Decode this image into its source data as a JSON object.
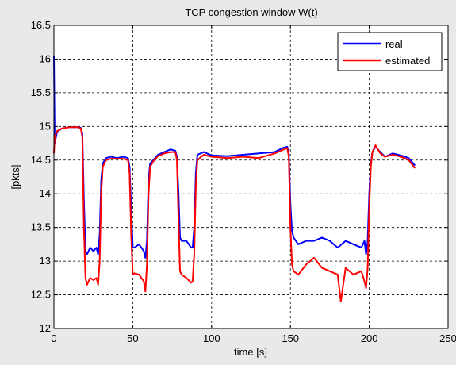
{
  "chart_data": {
    "type": "line",
    "title": "TCP congestion window W(t)",
    "xlabel": "time [s]",
    "ylabel": "[pkts]",
    "xlim": [
      0,
      250
    ],
    "ylim": [
      12,
      16.5
    ],
    "xticks": [
      "0",
      "50",
      "100",
      "150",
      "200",
      "250"
    ],
    "yticks": [
      "12",
      "12.5",
      "13",
      "13.5",
      "14",
      "14.5",
      "15",
      "15.5",
      "16",
      "16.5"
    ],
    "grid": true,
    "legend_position": "top-right",
    "series": [
      {
        "name": "real",
        "color": "#0000ff",
        "x": [
          0,
          0.5,
          2,
          5,
          10,
          15,
          17,
          18,
          19,
          20,
          21,
          23,
          25,
          27,
          28,
          29,
          30,
          31,
          33,
          36,
          40,
          44,
          47,
          48,
          49,
          50,
          51,
          54,
          57,
          58,
          59,
          60,
          61,
          63,
          66,
          70,
          74,
          77,
          78,
          79,
          80,
          81,
          84,
          87,
          88,
          89,
          90,
          91,
          95,
          100,
          110,
          120,
          130,
          140,
          145,
          148,
          149,
          150,
          151,
          152,
          155,
          160,
          165,
          170,
          175,
          180,
          185,
          190,
          195,
          197,
          198,
          199,
          200,
          201,
          202,
          204,
          207,
          210,
          215,
          220,
          225,
          229
        ],
        "y": [
          16.05,
          14.75,
          14.92,
          14.97,
          14.99,
          14.99,
          14.98,
          14.9,
          13.9,
          13.15,
          13.1,
          13.2,
          13.15,
          13.2,
          13.1,
          13.4,
          14.2,
          14.45,
          14.53,
          14.55,
          14.53,
          14.55,
          14.53,
          14.4,
          13.8,
          13.2,
          13.2,
          13.25,
          13.15,
          13.05,
          13.3,
          14.2,
          14.45,
          14.5,
          14.58,
          14.62,
          14.66,
          14.64,
          14.55,
          14.0,
          13.35,
          13.3,
          13.3,
          13.2,
          13.2,
          13.5,
          14.3,
          14.58,
          14.62,
          14.57,
          14.56,
          14.58,
          14.6,
          14.62,
          14.68,
          14.7,
          14.6,
          13.85,
          13.45,
          13.35,
          13.25,
          13.3,
          13.3,
          13.35,
          13.3,
          13.2,
          13.3,
          13.25,
          13.2,
          13.3,
          13.1,
          13.3,
          14.0,
          14.45,
          14.62,
          14.7,
          14.62,
          14.55,
          14.6,
          14.57,
          14.53,
          14.42
        ]
      },
      {
        "name": "estimated",
        "color": "#ff0000",
        "x": [
          0,
          0.5,
          2,
          5,
          10,
          15,
          17,
          18,
          19,
          20,
          21,
          23,
          25,
          27,
          28,
          29,
          30,
          31,
          33,
          36,
          40,
          44,
          47,
          48,
          49,
          50,
          51,
          54,
          57,
          58,
          59,
          60,
          61,
          63,
          66,
          70,
          74,
          77,
          78,
          79,
          80,
          81,
          84,
          87,
          88,
          89,
          90,
          91,
          95,
          100,
          110,
          120,
          130,
          140,
          145,
          148,
          149,
          150,
          151,
          152,
          155,
          160,
          165,
          170,
          175,
          180,
          182,
          185,
          190,
          195,
          197,
          198,
          199,
          200,
          201,
          202,
          204,
          207,
          210,
          215,
          220,
          225,
          229
        ],
        "y": [
          14.6,
          14.85,
          14.93,
          14.97,
          14.99,
          14.99,
          14.97,
          14.85,
          13.5,
          12.75,
          12.65,
          12.75,
          12.72,
          12.75,
          12.65,
          13.0,
          14.0,
          14.4,
          14.5,
          14.52,
          14.52,
          14.52,
          14.5,
          14.3,
          13.4,
          12.8,
          12.82,
          12.8,
          12.7,
          12.55,
          12.95,
          14.0,
          14.4,
          14.48,
          14.56,
          14.6,
          14.62,
          14.62,
          14.5,
          13.6,
          12.85,
          12.8,
          12.75,
          12.68,
          12.7,
          13.1,
          14.1,
          14.5,
          14.58,
          14.55,
          14.53,
          14.55,
          14.53,
          14.6,
          14.65,
          14.68,
          14.55,
          13.5,
          12.95,
          12.85,
          12.8,
          12.95,
          13.05,
          12.9,
          12.85,
          12.8,
          12.4,
          12.9,
          12.8,
          12.85,
          12.7,
          12.6,
          12.9,
          13.8,
          14.4,
          14.62,
          14.72,
          14.6,
          14.55,
          14.58,
          14.55,
          14.5,
          14.38
        ]
      }
    ]
  },
  "style": {
    "plot_background": "#ffffff",
    "figure_background": "#e9e9e9",
    "grid_color": "#000000",
    "axis_color": "#000000"
  }
}
